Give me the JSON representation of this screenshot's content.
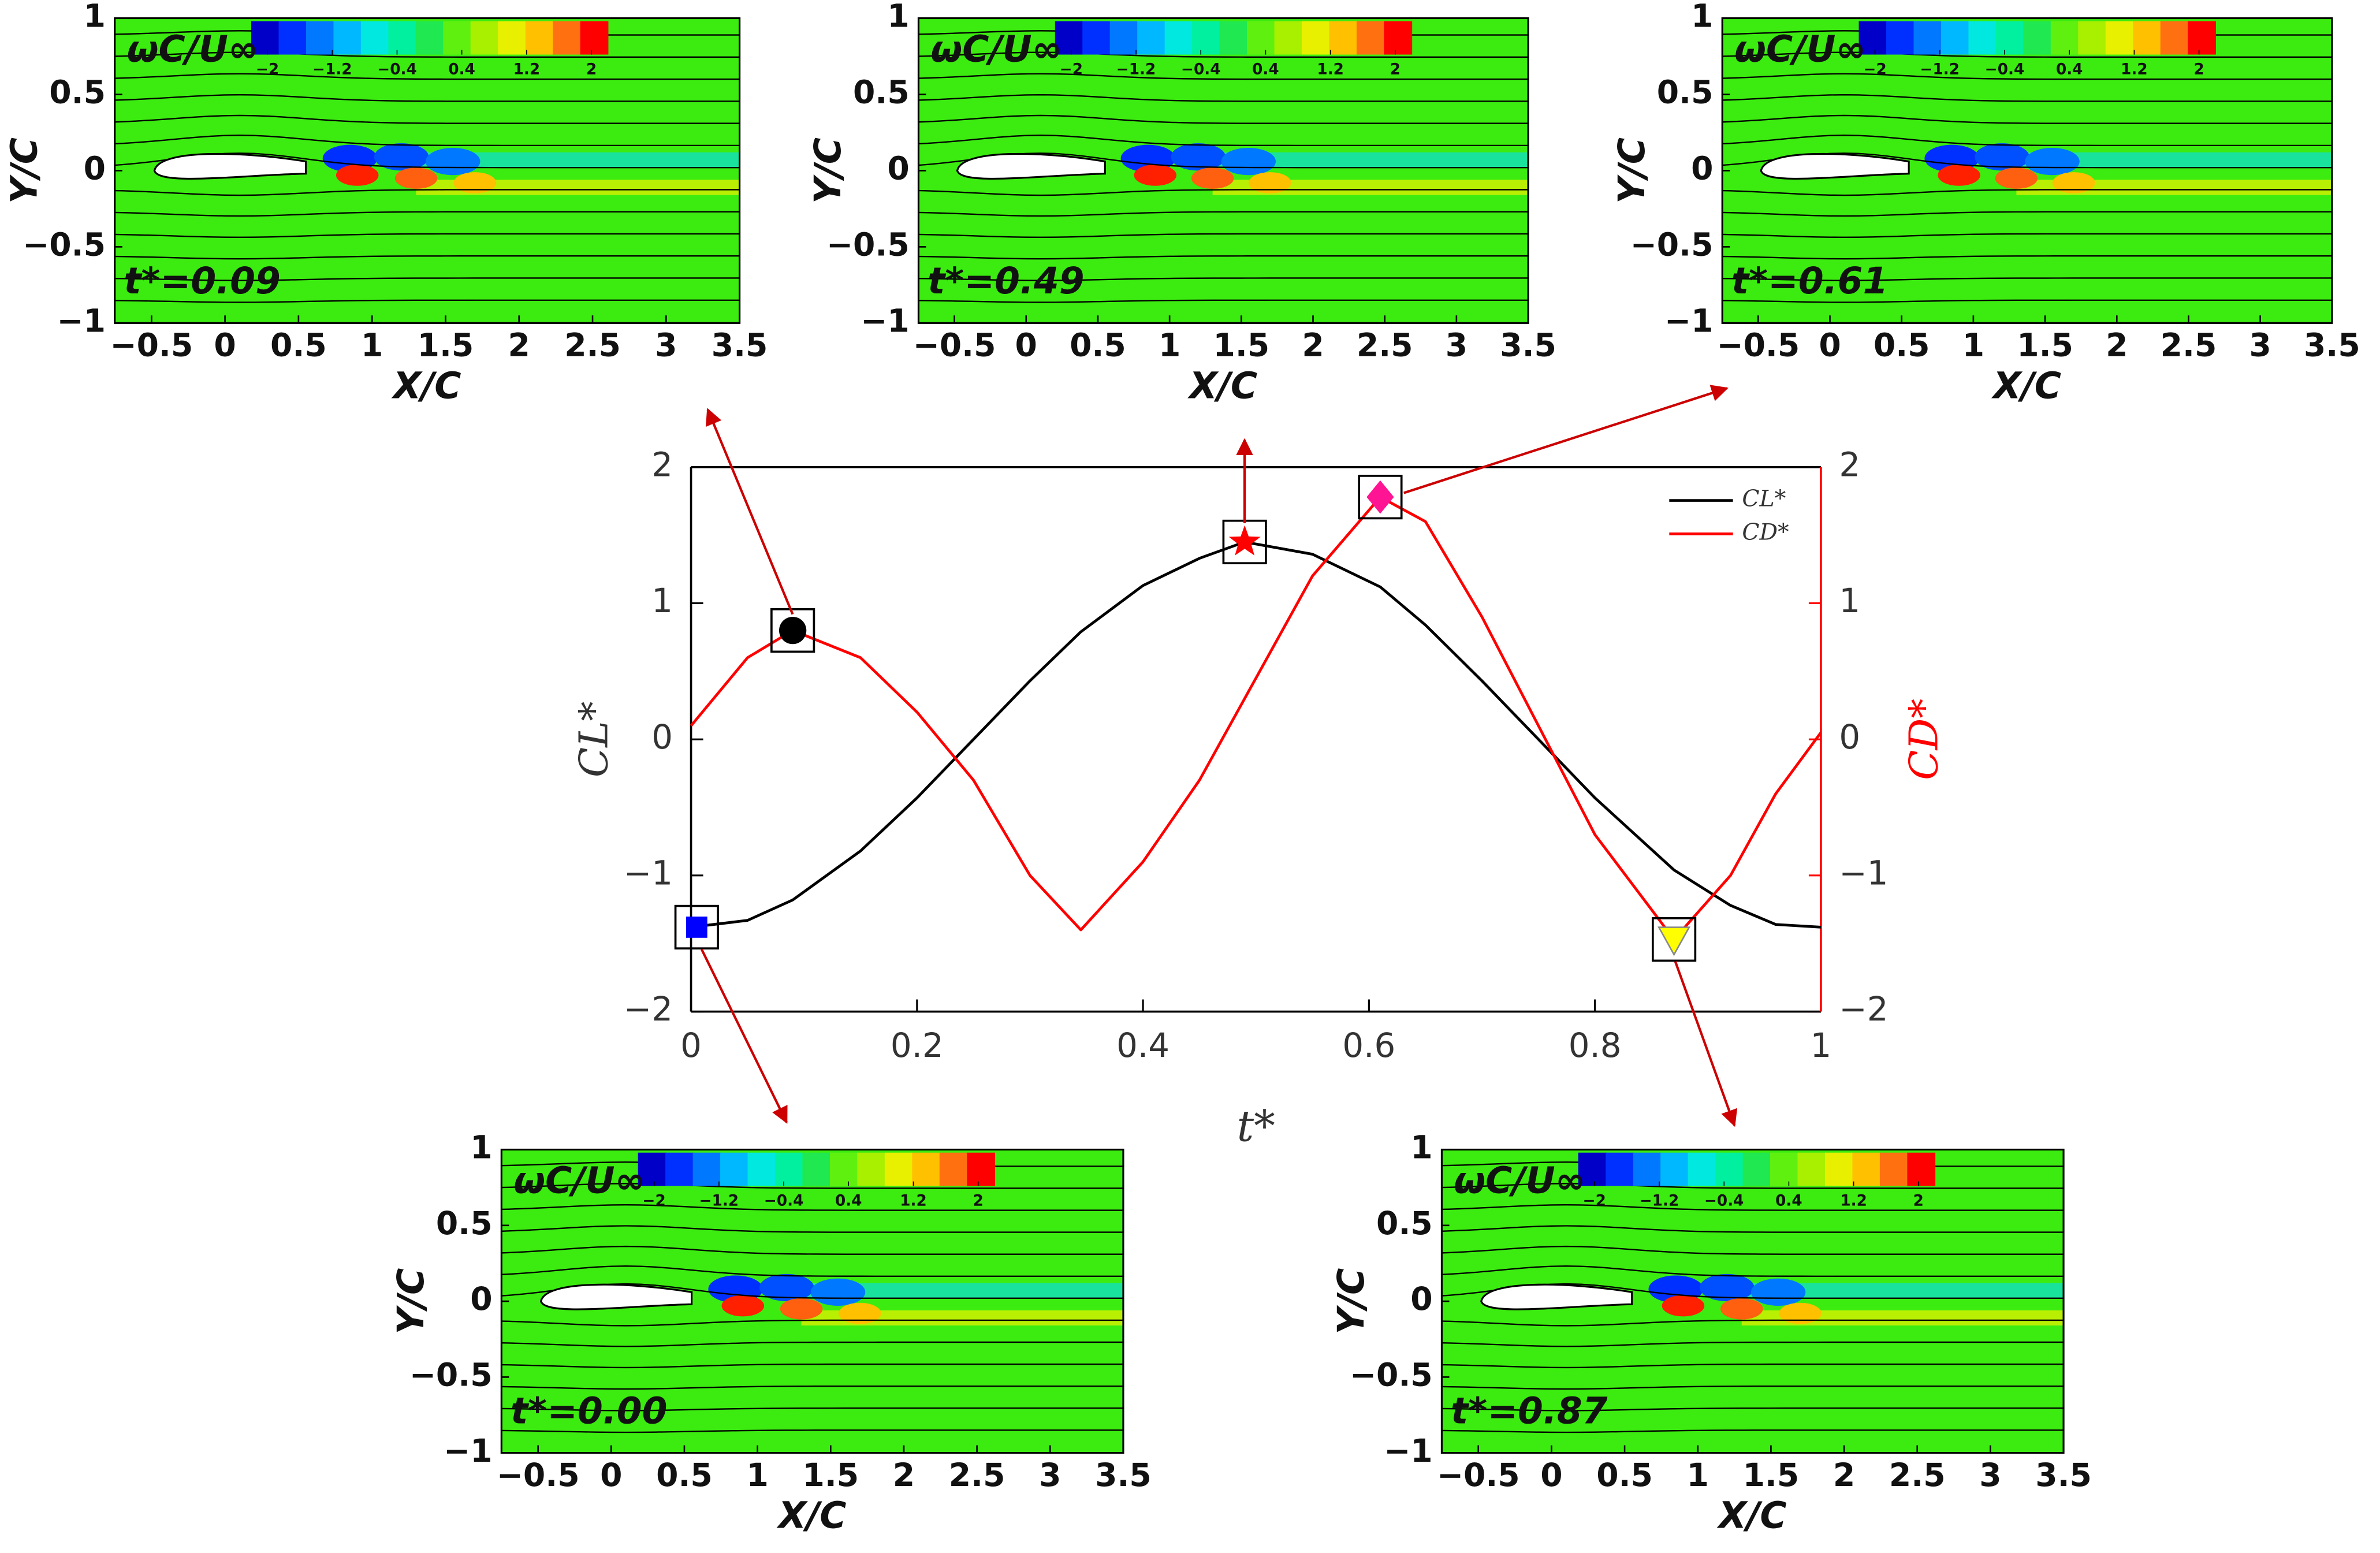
{
  "chart_data": [
    {
      "type": "line",
      "x_label": "t*",
      "y_label": "CL*",
      "y2_label": "CD*",
      "x": [
        0,
        0.05,
        0.09,
        0.15,
        0.2,
        0.25,
        0.3,
        0.345,
        0.4,
        0.45,
        0.49,
        0.55,
        0.61,
        0.65,
        0.7,
        0.75,
        0.8,
        0.87,
        0.92,
        0.96,
        1
      ],
      "series": [
        {
          "name": "CL*",
          "color": "#000000",
          "values": [
            -1.38,
            -1.33,
            -1.18,
            -0.82,
            -0.43,
            0,
            0.43,
            0.79,
            1.13,
            1.33,
            1.45,
            1.36,
            1.12,
            0.84,
            0.43,
            0,
            -0.43,
            -0.96,
            -1.22,
            -1.36,
            -1.38
          ]
        },
        {
          "name": "CD*",
          "color": "#ff0000",
          "axis": "y2",
          "values": [
            0.1,
            0.6,
            0.8,
            0.6,
            0.2,
            -0.3,
            -1.0,
            -1.4,
            -0.9,
            -0.3,
            0.3,
            1.2,
            1.78,
            1.6,
            0.9,
            0.1,
            -0.7,
            -1.47,
            -1.0,
            -0.4,
            0.05
          ]
        }
      ],
      "markers": [
        {
          "x": 0.005,
          "y": -1.38,
          "shape": "square",
          "color": "#0000ff"
        },
        {
          "x": 0.09,
          "y": 0.8,
          "shape": "circle",
          "color": "#000000",
          "axis": "y2"
        },
        {
          "x": 0.49,
          "y": 1.45,
          "shape": "star",
          "color": "#ff0000"
        },
        {
          "x": 0.61,
          "y": 1.78,
          "shape": "diamond",
          "color": "#ff1493",
          "axis": "y2"
        },
        {
          "x": 0.87,
          "y": -1.47,
          "shape": "triangle",
          "color": "#ffff00",
          "axis": "y2"
        }
      ],
      "xlim": [
        0,
        1
      ],
      "xticks": [
        0,
        0.2,
        0.4,
        0.6,
        0.8,
        1
      ],
      "ylim": [
        -2,
        2
      ],
      "yticks": [
        {
          "value": -2,
          "label": "−2"
        },
        {
          "value": -1,
          "label": "−1"
        },
        0,
        1,
        2
      ],
      "y2lim": [
        -2,
        2
      ],
      "y2ticks": [
        {
          "value": -2,
          "label": "−2"
        },
        {
          "value": -1,
          "label": "−1"
        },
        0,
        1,
        2
      ],
      "legend": "upper right"
    },
    {
      "type": "contour",
      "time_label": "t*=0.09",
      "x_label": "X/C",
      "y_label": "Y/C",
      "xlim": [
        -0.75,
        3.5
      ],
      "xticks": [
        {
          "value": -0.5,
          "label": "−0.5"
        },
        0,
        0.5,
        1,
        1.5,
        2,
        2.5,
        3,
        3.5
      ],
      "ylim": [
        -1,
        1
      ],
      "yticks": [
        {
          "value": -1,
          "label": "−1"
        },
        {
          "value": -0.5,
          "label": "−0.5"
        },
        0,
        0.5,
        1
      ],
      "colorbar_label": "ωC/U∞",
      "clim": [
        -2.2,
        2.2
      ],
      "colorbar_ticks": [
        {
          "value": -2,
          "label": "−2"
        },
        {
          "value": -1.2,
          "label": "−1.2"
        },
        {
          "value": -0.4,
          "label": "−0.4"
        },
        0.4,
        1.2,
        2
      ],
      "colorbar_colors": [
        "#0000c8",
        "#0030ff",
        "#0078ff",
        "#00b8ff",
        "#00e8e0",
        "#00f0a0",
        "#20e850",
        "#60f010",
        "#a8f000",
        "#e8f000",
        "#ffc000",
        "#ff7010",
        "#ff0000"
      ]
    },
    {
      "type": "contour",
      "time_label": "t*=0.49",
      "x_label": "X/C",
      "y_label": "Y/C",
      "xlim": [
        -0.75,
        3.5
      ],
      "xticks": [
        {
          "value": -0.5,
          "label": "−0.5"
        },
        0,
        0.5,
        1,
        1.5,
        2,
        2.5,
        3,
        3.5
      ],
      "ylim": [
        -1,
        1
      ],
      "yticks": [
        {
          "value": -1,
          "label": "−1"
        },
        {
          "value": -0.5,
          "label": "−0.5"
        },
        0,
        0.5,
        1
      ],
      "colorbar_label": "ωC/U∞",
      "clim": [
        -2.2,
        2.2
      ],
      "colorbar_ticks": [
        {
          "value": -2,
          "label": "−2"
        },
        {
          "value": -1.2,
          "label": "−1.2"
        },
        {
          "value": -0.4,
          "label": "−0.4"
        },
        0.4,
        1.2,
        2
      ],
      "colorbar_colors": [
        "#0000c8",
        "#0030ff",
        "#0078ff",
        "#00b8ff",
        "#00e8e0",
        "#00f0a0",
        "#20e850",
        "#60f010",
        "#a8f000",
        "#e8f000",
        "#ffc000",
        "#ff7010",
        "#ff0000"
      ]
    },
    {
      "type": "contour",
      "time_label": "t*=0.61",
      "x_label": "X/C",
      "y_label": "Y/C",
      "xlim": [
        -0.75,
        3.5
      ],
      "xticks": [
        {
          "value": -0.5,
          "label": "−0.5"
        },
        0,
        0.5,
        1,
        1.5,
        2,
        2.5,
        3,
        3.5
      ],
      "ylim": [
        -1,
        1
      ],
      "yticks": [
        {
          "value": -1,
          "label": "−1"
        },
        {
          "value": -0.5,
          "label": "−0.5"
        },
        0,
        0.5,
        1
      ],
      "colorbar_label": "ωC/U∞",
      "clim": [
        -2.2,
        2.2
      ],
      "colorbar_ticks": [
        {
          "value": -2,
          "label": "−2"
        },
        {
          "value": -1.2,
          "label": "−1.2"
        },
        {
          "value": -0.4,
          "label": "−0.4"
        },
        0.4,
        1.2,
        2
      ],
      "colorbar_colors": [
        "#0000c8",
        "#0030ff",
        "#0078ff",
        "#00b8ff",
        "#00e8e0",
        "#00f0a0",
        "#20e850",
        "#60f010",
        "#a8f000",
        "#e8f000",
        "#ffc000",
        "#ff7010",
        "#ff0000"
      ]
    },
    {
      "type": "contour",
      "time_label": "t*=0.00",
      "x_label": "X/C",
      "y_label": "Y/C",
      "xlim": [
        -0.75,
        3.5
      ],
      "xticks": [
        {
          "value": -0.5,
          "label": "−0.5"
        },
        0,
        0.5,
        1,
        1.5,
        2,
        2.5,
        3,
        3.5
      ],
      "ylim": [
        -1,
        1
      ],
      "yticks": [
        {
          "value": -1,
          "label": "−1"
        },
        {
          "value": -0.5,
          "label": "−0.5"
        },
        0,
        0.5,
        1
      ],
      "colorbar_label": "ωC/U∞",
      "clim": [
        -2.2,
        2.2
      ],
      "colorbar_ticks": [
        {
          "value": -2,
          "label": "−2"
        },
        {
          "value": -1.2,
          "label": "−1.2"
        },
        {
          "value": -0.4,
          "label": "−0.4"
        },
        0.4,
        1.2,
        2
      ],
      "colorbar_colors": [
        "#0000c8",
        "#0030ff",
        "#0078ff",
        "#00b8ff",
        "#00e8e0",
        "#00f0a0",
        "#20e850",
        "#60f010",
        "#a8f000",
        "#e8f000",
        "#ffc000",
        "#ff7010",
        "#ff0000"
      ]
    },
    {
      "type": "contour",
      "time_label": "t*=0.87",
      "x_label": "X/C",
      "y_label": "Y/C",
      "xlim": [
        -0.75,
        3.5
      ],
      "xticks": [
        {
          "value": -0.5,
          "label": "−0.5"
        },
        0,
        0.5,
        1,
        1.5,
        2,
        2.5,
        3,
        3.5
      ],
      "ylim": [
        -1,
        1
      ],
      "yticks": [
        {
          "value": -1,
          "label": "−1"
        },
        {
          "value": -0.5,
          "label": "−0.5"
        },
        0,
        0.5,
        1
      ],
      "colorbar_label": "ωC/U∞",
      "clim": [
        -2.2,
        2.2
      ],
      "colorbar_ticks": [
        {
          "value": -2,
          "label": "−2"
        },
        {
          "value": -1.2,
          "label": "−1.2"
        },
        {
          "value": -0.4,
          "label": "−0.4"
        },
        0.4,
        1.2,
        2
      ],
      "colorbar_colors": [
        "#0000c8",
        "#0030ff",
        "#0078ff",
        "#00b8ff",
        "#00e8e0",
        "#00f0a0",
        "#20e850",
        "#60f010",
        "#a8f000",
        "#e8f000",
        "#ffc000",
        "#ff7010",
        "#ff0000"
      ]
    }
  ]
}
